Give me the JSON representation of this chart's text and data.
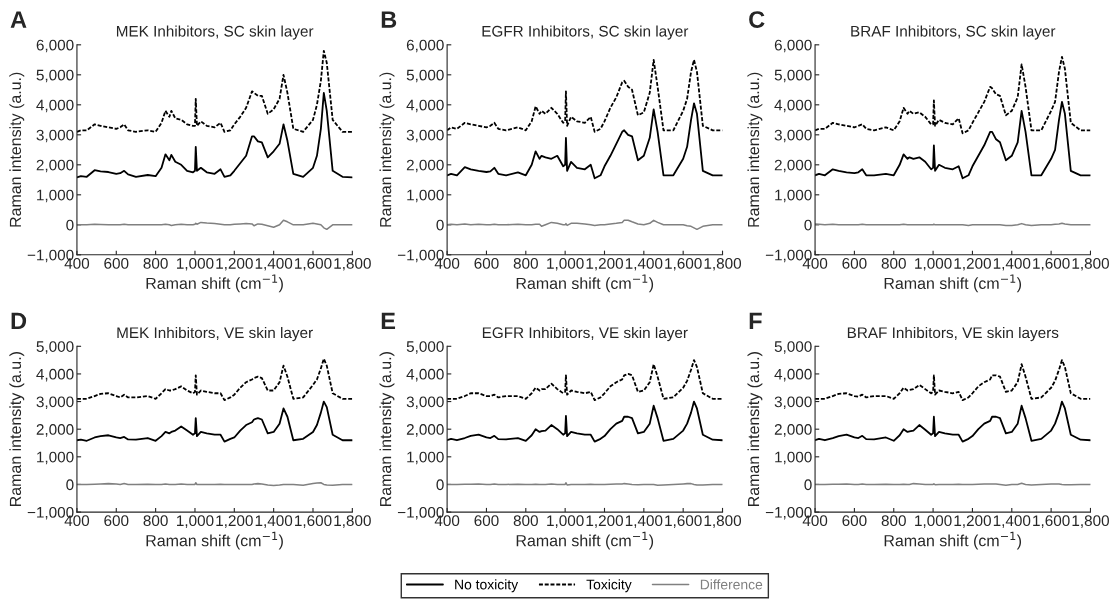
{
  "chart_data": [
    {
      "type": "line",
      "annotations": [
        "A"
      ],
      "title": "MEK Inhibitors, SC skin layer",
      "xlabel": "Raman shift (cm$^{−1}$)",
      "ylabel": "Raman intensity (a.u.)",
      "xlim": [
        400,
        1800
      ],
      "xticks": [
        400,
        600,
        800,
        {
          "value": 1000,
          "label": "1,000"
        },
        {
          "value": 1200,
          "label": "1,200"
        },
        {
          "value": 1400,
          "label": "1,400"
        },
        {
          "value": 1600,
          "label": "1,600"
        },
        {
          "value": 1800,
          "label": "1,800"
        }
      ],
      "ylim": [
        -1000,
        6000
      ],
      "yticks": [
        {
          "value": -1000,
          "label": "−1,000"
        },
        0,
        {
          "value": 1000,
          "label": "1,000"
        },
        {
          "value": 2000,
          "label": "2,000"
        },
        {
          "value": 3000,
          "label": "3,000"
        },
        {
          "value": 4000,
          "label": "4,000"
        },
        {
          "value": 5000,
          "label": "5,000"
        },
        {
          "value": 6000,
          "label": "6,000"
        }
      ],
      "x": [
        400,
        420,
        450,
        490,
        520,
        560,
        600,
        620,
        640,
        660,
        700,
        760,
        800,
        830,
        850,
        870,
        880,
        900,
        930,
        960,
        990,
        1000,
        1004,
        1010,
        1030,
        1060,
        1100,
        1130,
        1150,
        1180,
        1200,
        1230,
        1260,
        1290,
        1300,
        1320,
        1340,
        1370,
        1400,
        1430,
        1450,
        1470,
        1500,
        1550,
        1600,
        1620,
        1640,
        1655,
        1670,
        1700,
        1750,
        1800
      ],
      "series": [
        {
          "color": "#000000",
          "line_style": "solid",
          "values": [
            1580,
            1620,
            1600,
            1820,
            1780,
            1760,
            1700,
            1720,
            1800,
            1680,
            1600,
            1660,
            1620,
            1900,
            2350,
            2150,
            2330,
            2100,
            2000,
            1800,
            1750,
            1800,
            2600,
            1800,
            1900,
            1750,
            1700,
            1850,
            1600,
            1650,
            1800,
            2050,
            2300,
            2950,
            2950,
            2780,
            2750,
            2250,
            2450,
            2700,
            3350,
            2800,
            1700,
            1600,
            1900,
            2300,
            3200,
            4400,
            3800,
            1800,
            1600,
            1580
          ]
        },
        {
          "color": "#000000",
          "line_style": "dashed",
          "values": [
            3100,
            3150,
            3150,
            3350,
            3300,
            3250,
            3200,
            3250,
            3350,
            3150,
            3100,
            3150,
            3100,
            3400,
            3800,
            3600,
            3800,
            3550,
            3500,
            3350,
            3300,
            3300,
            4200,
            3300,
            3450,
            3300,
            3250,
            3400,
            3100,
            3150,
            3350,
            3600,
            3900,
            4450,
            4400,
            4300,
            4300,
            3700,
            3850,
            4200,
            5000,
            4400,
            3200,
            3100,
            3500,
            4000,
            4800,
            5800,
            5400,
            3500,
            3100,
            3100
          ]
        },
        {
          "color": "#808080",
          "line_style": "solid",
          "values": [
            0,
            0,
            0,
            20,
            10,
            0,
            0,
            0,
            20,
            0,
            0,
            0,
            0,
            0,
            20,
            0,
            -20,
            0,
            20,
            0,
            0,
            20,
            50,
            20,
            80,
            60,
            40,
            20,
            0,
            0,
            20,
            30,
            40,
            30,
            -30,
            30,
            20,
            -30,
            -80,
            0,
            150,
            100,
            0,
            0,
            50,
            30,
            0,
            -100,
            -150,
            0,
            0,
            0
          ]
        }
      ]
    },
    {
      "type": "line",
      "annotations": [
        "B"
      ],
      "title": "EGFR Inhibitors, SC skin layer",
      "xlabel": "Raman shift (cm$^{−1}$)",
      "ylabel": "Raman intensity (a.u.)",
      "xlim": [
        400,
        1800
      ],
      "xticks": [
        400,
        600,
        800,
        {
          "value": 1000,
          "label": "1,000"
        },
        {
          "value": 1200,
          "label": "1,200"
        },
        {
          "value": 1400,
          "label": "1,400"
        },
        {
          "value": 1600,
          "label": "1,600"
        },
        {
          "value": 1800,
          "label": "1,800"
        }
      ],
      "ylim": [
        -1000,
        6000
      ],
      "yticks": [
        {
          "value": -1000,
          "label": "−1,000"
        },
        0,
        {
          "value": 1000,
          "label": "1,000"
        },
        {
          "value": 2000,
          "label": "2,000"
        },
        {
          "value": 3000,
          "label": "3,000"
        },
        {
          "value": 4000,
          "label": "4,000"
        },
        {
          "value": 5000,
          "label": "5,000"
        },
        {
          "value": 6000,
          "label": "6,000"
        }
      ],
      "x": [
        400,
        420,
        450,
        490,
        520,
        560,
        600,
        620,
        640,
        660,
        700,
        760,
        800,
        830,
        850,
        870,
        880,
        900,
        930,
        960,
        990,
        1000,
        1004,
        1010,
        1030,
        1060,
        1100,
        1130,
        1150,
        1180,
        1200,
        1230,
        1260,
        1290,
        1300,
        1320,
        1340,
        1370,
        1400,
        1430,
        1450,
        1470,
        1500,
        1550,
        1600,
        1620,
        1640,
        1655,
        1670,
        1700,
        1750,
        1800
      ],
      "series": [
        {
          "color": "#000000",
          "line_style": "solid",
          "values": [
            1650,
            1700,
            1650,
            1920,
            1850,
            1800,
            1760,
            1780,
            1900,
            1700,
            1650,
            1750,
            1650,
            2000,
            2450,
            2200,
            2300,
            2250,
            2200,
            2300,
            1950,
            2000,
            2900,
            1800,
            2100,
            1900,
            1850,
            2000,
            1550,
            1650,
            1950,
            2300,
            2700,
            3100,
            3150,
            3000,
            2950,
            2150,
            2300,
            2900,
            3850,
            3100,
            1650,
            1650,
            2200,
            2600,
            3500,
            4050,
            3700,
            1800,
            1650,
            1650
          ]
        },
        {
          "color": "#000000",
          "line_style": "dashed",
          "values": [
            3150,
            3250,
            3200,
            3400,
            3350,
            3300,
            3250,
            3300,
            3400,
            3200,
            3150,
            3250,
            3150,
            3450,
            3950,
            3700,
            3800,
            3700,
            3900,
            3700,
            3400,
            3450,
            4450,
            3300,
            3600,
            3450,
            3400,
            3600,
            3100,
            3200,
            3450,
            3900,
            4250,
            4750,
            4800,
            4600,
            4500,
            3650,
            3750,
            4400,
            5500,
            4600,
            3150,
            3150,
            3800,
            4200,
            5100,
            5500,
            5100,
            3300,
            3150,
            3150
          ]
        },
        {
          "color": "#808080",
          "line_style": "solid",
          "values": [
            0,
            20,
            0,
            30,
            0,
            20,
            0,
            0,
            20,
            0,
            0,
            20,
            0,
            0,
            20,
            20,
            -50,
            0,
            80,
            50,
            0,
            0,
            40,
            -20,
            50,
            50,
            30,
            0,
            -20,
            0,
            0,
            30,
            50,
            80,
            150,
            150,
            100,
            30,
            0,
            50,
            150,
            80,
            0,
            0,
            0,
            -30,
            -50,
            -100,
            -150,
            -50,
            0,
            0
          ]
        }
      ]
    },
    {
      "type": "line",
      "annotations": [
        "C"
      ],
      "title": "BRAF Inhibitors, SC skin layer",
      "xlabel": "Raman shift (cm$^{−1}$)",
      "ylabel": "Raman intensity (a.u.)",
      "xlim": [
        400,
        1800
      ],
      "xticks": [
        400,
        600,
        800,
        {
          "value": 1000,
          "label": "1,000"
        },
        {
          "value": 1200,
          "label": "1,200"
        },
        {
          "value": 1400,
          "label": "1,400"
        },
        {
          "value": 1600,
          "label": "1,600"
        },
        {
          "value": 1800,
          "label": "1,800"
        }
      ],
      "ylim": [
        -1000,
        6000
      ],
      "yticks": [
        {
          "value": -1000,
          "label": "−1,000"
        },
        0,
        {
          "value": 1000,
          "label": "1,000"
        },
        {
          "value": 2000,
          "label": "2,000"
        },
        {
          "value": 3000,
          "label": "3,000"
        },
        {
          "value": 4000,
          "label": "4,000"
        },
        {
          "value": 5000,
          "label": "5,000"
        },
        {
          "value": 6000,
          "label": "6,000"
        }
      ],
      "x": [
        400,
        420,
        450,
        490,
        520,
        560,
        600,
        620,
        640,
        660,
        700,
        760,
        800,
        830,
        850,
        870,
        880,
        900,
        930,
        960,
        990,
        1000,
        1004,
        1010,
        1030,
        1060,
        1100,
        1130,
        1150,
        1180,
        1200,
        1230,
        1260,
        1290,
        1300,
        1320,
        1340,
        1370,
        1400,
        1430,
        1450,
        1470,
        1500,
        1550,
        1600,
        1620,
        1640,
        1655,
        1670,
        1700,
        1750,
        1800
      ],
      "series": [
        {
          "color": "#000000",
          "line_style": "solid",
          "values": [
            1650,
            1700,
            1650,
            1850,
            1800,
            1750,
            1720,
            1750,
            1850,
            1650,
            1650,
            1700,
            1650,
            2000,
            2350,
            2200,
            2250,
            2200,
            2250,
            2100,
            1850,
            1900,
            2650,
            1800,
            2000,
            1900,
            1850,
            1950,
            1550,
            1650,
            1950,
            2300,
            2650,
            3100,
            3100,
            2850,
            2750,
            2150,
            2300,
            2750,
            3800,
            3100,
            1650,
            1650,
            2200,
            2500,
            3500,
            4100,
            3700,
            1800,
            1650,
            1650
          ]
        },
        {
          "color": "#000000",
          "line_style": "dashed",
          "values": [
            3150,
            3200,
            3200,
            3400,
            3350,
            3300,
            3250,
            3300,
            3350,
            3200,
            3150,
            3250,
            3150,
            3450,
            3900,
            3700,
            3800,
            3700,
            3750,
            3600,
            3350,
            3350,
            4150,
            3300,
            3500,
            3400,
            3350,
            3550,
            3050,
            3150,
            3400,
            3750,
            4100,
            4600,
            4550,
            4350,
            4300,
            3650,
            3800,
            4250,
            5350,
            4600,
            3150,
            3150,
            3800,
            4100,
            5100,
            5600,
            5200,
            3400,
            3150,
            3150
          ]
        },
        {
          "color": "#808080",
          "line_style": "solid",
          "values": [
            30,
            20,
            0,
            20,
            0,
            0,
            0,
            0,
            20,
            0,
            0,
            0,
            0,
            0,
            20,
            0,
            0,
            0,
            0,
            0,
            0,
            0,
            20,
            0,
            0,
            0,
            0,
            0,
            0,
            -20,
            0,
            0,
            0,
            0,
            0,
            0,
            0,
            -20,
            -20,
            0,
            40,
            0,
            -20,
            0,
            0,
            20,
            30,
            50,
            30,
            0,
            0,
            0
          ]
        }
      ]
    },
    {
      "type": "line",
      "annotations": [
        "D"
      ],
      "title": "MEK Inhibitors, VE skin layer",
      "xlabel": "Raman shift (cm$^{−1}$)",
      "ylabel": "Raman intensity (a.u.)",
      "xlim": [
        400,
        1800
      ],
      "xticks": [
        400,
        600,
        800,
        {
          "value": 1000,
          "label": "1,000"
        },
        {
          "value": 1200,
          "label": "1,200"
        },
        {
          "value": 1400,
          "label": "1,400"
        },
        {
          "value": 1600,
          "label": "1,600"
        },
        {
          "value": 1800,
          "label": "1,800"
        }
      ],
      "ylim": [
        -1000,
        5000
      ],
      "yticks": [
        {
          "value": -1000,
          "label": "−1,000"
        },
        0,
        {
          "value": 1000,
          "label": "1,000"
        },
        {
          "value": 2000,
          "label": "2,000"
        },
        {
          "value": 3000,
          "label": "3,000"
        },
        {
          "value": 4000,
          "label": "4,000"
        },
        {
          "value": 5000,
          "label": "5,000"
        }
      ],
      "x": [
        400,
        420,
        450,
        490,
        520,
        560,
        600,
        620,
        640,
        660,
        700,
        760,
        800,
        830,
        850,
        870,
        880,
        900,
        930,
        960,
        990,
        1000,
        1004,
        1010,
        1030,
        1060,
        1100,
        1130,
        1150,
        1180,
        1200,
        1230,
        1260,
        1290,
        1300,
        1320,
        1340,
        1370,
        1400,
        1430,
        1450,
        1470,
        1500,
        1550,
        1600,
        1620,
        1640,
        1655,
        1670,
        1700,
        1750,
        1800
      ],
      "series": [
        {
          "color": "#000000",
          "line_style": "solid",
          "values": [
            1600,
            1620,
            1580,
            1700,
            1750,
            1780,
            1700,
            1680,
            1720,
            1630,
            1620,
            1680,
            1580,
            1750,
            1900,
            1850,
            1900,
            1950,
            2100,
            1950,
            1800,
            1850,
            2400,
            1750,
            1900,
            1850,
            1800,
            1800,
            1550,
            1650,
            1700,
            1950,
            2150,
            2250,
            2350,
            2400,
            2350,
            1850,
            1900,
            2200,
            2750,
            2450,
            1600,
            1650,
            1900,
            2150,
            2600,
            3000,
            2800,
            1800,
            1600,
            1600
          ]
        },
        {
          "color": "#000000",
          "line_style": "dashed",
          "values": [
            3100,
            3100,
            3100,
            3200,
            3280,
            3300,
            3200,
            3150,
            3250,
            3150,
            3150,
            3200,
            3100,
            3300,
            3450,
            3400,
            3400,
            3450,
            3550,
            3400,
            3300,
            3350,
            3950,
            3250,
            3400,
            3350,
            3300,
            3300,
            3050,
            3150,
            3250,
            3500,
            3700,
            3800,
            3850,
            3900,
            3850,
            3400,
            3400,
            3700,
            4300,
            3900,
            3100,
            3150,
            3600,
            3800,
            4200,
            4550,
            4300,
            3300,
            3100,
            3100
          ]
        },
        {
          "color": "#808080",
          "line_style": "solid",
          "values": [
            0,
            0,
            0,
            10,
            20,
            30,
            20,
            0,
            30,
            0,
            0,
            10,
            0,
            0,
            20,
            0,
            0,
            0,
            20,
            0,
            0,
            0,
            60,
            0,
            0,
            0,
            0,
            10,
            0,
            0,
            0,
            0,
            0,
            0,
            20,
            30,
            20,
            -20,
            -40,
            -20,
            0,
            0,
            0,
            -30,
            30,
            50,
            60,
            0,
            -20,
            -30,
            0,
            0
          ]
        }
      ]
    },
    {
      "type": "line",
      "annotations": [
        "E"
      ],
      "title": "EGFR Inhibitors, VE skin layer",
      "xlabel": "Raman shift (cm$^{−1}$)",
      "ylabel": "Raman intensity (a.u.)",
      "legend": "bottom",
      "xlim": [
        400,
        1800
      ],
      "xticks": [
        400,
        600,
        800,
        {
          "value": 1000,
          "label": "1,000"
        },
        {
          "value": 1200,
          "label": "1,200"
        },
        {
          "value": 1400,
          "label": "1,400"
        },
        {
          "value": 1600,
          "label": "1,600"
        },
        {
          "value": 1800,
          "label": "1,800"
        }
      ],
      "ylim": [
        -1000,
        5000
      ],
      "yticks": [
        {
          "value": -1000,
          "label": "−1,000"
        },
        0,
        {
          "value": 1000,
          "label": "1,000"
        },
        {
          "value": 2000,
          "label": "2,000"
        },
        {
          "value": 3000,
          "label": "3,000"
        },
        {
          "value": 4000,
          "label": "4,000"
        },
        {
          "value": 5000,
          "label": "5,000"
        }
      ],
      "x": [
        400,
        420,
        450,
        490,
        520,
        560,
        600,
        620,
        640,
        660,
        700,
        760,
        800,
        830,
        850,
        870,
        880,
        900,
        930,
        960,
        990,
        1000,
        1004,
        1010,
        1030,
        1060,
        1100,
        1130,
        1150,
        1180,
        1200,
        1230,
        1260,
        1290,
        1300,
        1320,
        1340,
        1370,
        1400,
        1430,
        1450,
        1470,
        1500,
        1550,
        1600,
        1620,
        1640,
        1655,
        1670,
        1700,
        1750,
        1800
      ],
      "series": [
        {
          "name": "No toxicity",
          "color": "#000000",
          "line_style": "solid",
          "values": [
            1600,
            1650,
            1600,
            1680,
            1760,
            1800,
            1700,
            1680,
            1760,
            1640,
            1630,
            1680,
            1580,
            1780,
            2000,
            1900,
            1930,
            1950,
            2150,
            2000,
            1800,
            1850,
            2480,
            1750,
            1900,
            1850,
            1800,
            1800,
            1550,
            1650,
            1750,
            2000,
            2200,
            2300,
            2450,
            2450,
            2400,
            1850,
            1900,
            2200,
            2850,
            2400,
            1580,
            1650,
            1950,
            2200,
            2600,
            3000,
            2750,
            1800,
            1620,
            1600
          ]
        },
        {
          "name": "Toxicity",
          "color": "#000000",
          "line_style": "dashed",
          "values": [
            3100,
            3100,
            3100,
            3200,
            3300,
            3300,
            3200,
            3200,
            3250,
            3150,
            3200,
            3200,
            3100,
            3300,
            3500,
            3400,
            3450,
            3450,
            3650,
            3450,
            3300,
            3350,
            3950,
            3250,
            3400,
            3350,
            3300,
            3350,
            3050,
            3150,
            3300,
            3550,
            3700,
            3800,
            3950,
            4000,
            3950,
            3350,
            3400,
            3700,
            4350,
            3900,
            3100,
            3150,
            3500,
            3750,
            4150,
            4500,
            4250,
            3300,
            3100,
            3100
          ]
        },
        {
          "name": "Difference",
          "color": "#808080",
          "line_style": "solid",
          "values": [
            0,
            0,
            0,
            10,
            10,
            20,
            0,
            0,
            20,
            0,
            0,
            10,
            0,
            0,
            10,
            0,
            0,
            0,
            20,
            0,
            0,
            0,
            60,
            -20,
            0,
            0,
            0,
            10,
            0,
            0,
            0,
            10,
            20,
            20,
            30,
            20,
            0,
            -10,
            0,
            0,
            0,
            -30,
            -20,
            0,
            20,
            30,
            30,
            0,
            -20,
            -20,
            0,
            0
          ]
        }
      ]
    },
    {
      "type": "line",
      "annotations": [
        "F"
      ],
      "title": "BRAF Inhibitors, VE skin layers",
      "xlabel": "Raman shift (cm$^{−1}$)",
      "ylabel": "Raman intensity (a.u.)",
      "xlim": [
        400,
        1800
      ],
      "xticks": [
        400,
        600,
        800,
        {
          "value": 1000,
          "label": "1,000"
        },
        {
          "value": 1200,
          "label": "1,200"
        },
        {
          "value": 1400,
          "label": "1,400"
        },
        {
          "value": 1600,
          "label": "1,600"
        },
        {
          "value": 1800,
          "label": "1,800"
        }
      ],
      "ylim": [
        -1000,
        5000
      ],
      "yticks": [
        {
          "value": -1000,
          "label": "−1,000"
        },
        0,
        {
          "value": 1000,
          "label": "1,000"
        },
        {
          "value": 2000,
          "label": "2,000"
        },
        {
          "value": 3000,
          "label": "3,000"
        },
        {
          "value": 4000,
          "label": "4,000"
        },
        {
          "value": 5000,
          "label": "5,000"
        }
      ],
      "x": [
        400,
        420,
        450,
        490,
        520,
        560,
        600,
        620,
        640,
        660,
        700,
        760,
        800,
        830,
        850,
        870,
        880,
        900,
        930,
        960,
        990,
        1000,
        1004,
        1010,
        1030,
        1060,
        1100,
        1130,
        1150,
        1180,
        1200,
        1230,
        1260,
        1290,
        1300,
        1320,
        1340,
        1370,
        1400,
        1430,
        1450,
        1470,
        1500,
        1550,
        1600,
        1620,
        1640,
        1655,
        1670,
        1700,
        1750,
        1800
      ],
      "series": [
        {
          "color": "#000000",
          "line_style": "solid",
          "values": [
            1600,
            1650,
            1600,
            1680,
            1750,
            1800,
            1700,
            1680,
            1760,
            1640,
            1630,
            1700,
            1580,
            1780,
            2000,
            1900,
            1920,
            1950,
            2150,
            1980,
            1800,
            1850,
            2450,
            1750,
            1900,
            1850,
            1800,
            1800,
            1550,
            1650,
            1750,
            2000,
            2200,
            2300,
            2450,
            2450,
            2400,
            1850,
            1900,
            2200,
            2850,
            2400,
            1580,
            1650,
            1950,
            2200,
            2600,
            3000,
            2750,
            1800,
            1620,
            1600
          ]
        },
        {
          "color": "#000000",
          "line_style": "dashed",
          "values": [
            3100,
            3100,
            3100,
            3200,
            3280,
            3300,
            3200,
            3180,
            3250,
            3150,
            3200,
            3200,
            3100,
            3300,
            3500,
            3400,
            3420,
            3450,
            3600,
            3450,
            3300,
            3350,
            3950,
            3250,
            3400,
            3350,
            3300,
            3350,
            3050,
            3150,
            3300,
            3550,
            3700,
            3800,
            3950,
            3950,
            3900,
            3350,
            3400,
            3700,
            4350,
            3900,
            3100,
            3150,
            3500,
            3750,
            4150,
            4500,
            4250,
            3300,
            3100,
            3100
          ]
        },
        {
          "color": "#808080",
          "line_style": "solid",
          "values": [
            0,
            0,
            0,
            10,
            10,
            20,
            0,
            0,
            20,
            0,
            0,
            10,
            0,
            0,
            10,
            0,
            0,
            30,
            20,
            0,
            0,
            0,
            20,
            -10,
            0,
            0,
            0,
            10,
            0,
            0,
            0,
            10,
            20,
            20,
            20,
            20,
            0,
            -30,
            0,
            0,
            40,
            0,
            -20,
            0,
            20,
            20,
            20,
            0,
            -10,
            -10,
            0,
            0
          ]
        }
      ]
    }
  ]
}
